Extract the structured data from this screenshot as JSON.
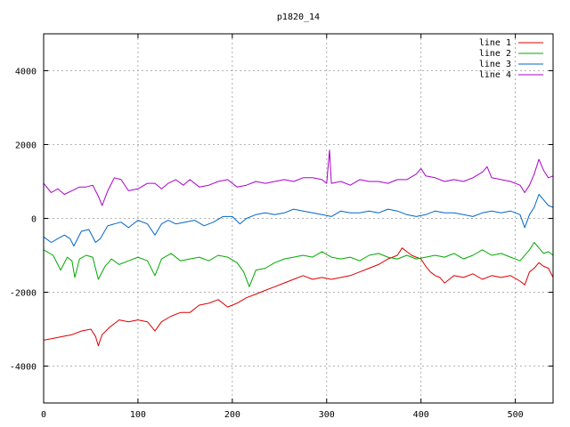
{
  "chart_data": {
    "type": "line",
    "title": "p1820_14",
    "xlim": [
      0,
      540
    ],
    "ylim": [
      -5000,
      5000
    ],
    "x_ticks": [
      0,
      100,
      200,
      300,
      400,
      500
    ],
    "y_ticks": [
      -4000,
      -2000,
      0,
      2000,
      4000
    ],
    "grid": true,
    "legend_position": "top-right",
    "series": [
      {
        "name": "line 1",
        "color": "#dd0000",
        "points": [
          [
            0,
            -3300
          ],
          [
            10,
            -3250
          ],
          [
            20,
            -3200
          ],
          [
            30,
            -3150
          ],
          [
            40,
            -3050
          ],
          [
            50,
            -3000
          ],
          [
            55,
            -3200
          ],
          [
            58,
            -3450
          ],
          [
            62,
            -3150
          ],
          [
            70,
            -2950
          ],
          [
            80,
            -2750
          ],
          [
            90,
            -2800
          ],
          [
            100,
            -2750
          ],
          [
            110,
            -2800
          ],
          [
            118,
            -3050
          ],
          [
            125,
            -2800
          ],
          [
            135,
            -2650
          ],
          [
            145,
            -2550
          ],
          [
            155,
            -2550
          ],
          [
            165,
            -2350
          ],
          [
            175,
            -2300
          ],
          [
            185,
            -2200
          ],
          [
            195,
            -2400
          ],
          [
            205,
            -2300
          ],
          [
            215,
            -2150
          ],
          [
            225,
            -2050
          ],
          [
            235,
            -1950
          ],
          [
            245,
            -1850
          ],
          [
            255,
            -1750
          ],
          [
            265,
            -1650
          ],
          [
            275,
            -1550
          ],
          [
            285,
            -1650
          ],
          [
            295,
            -1600
          ],
          [
            305,
            -1650
          ],
          [
            315,
            -1600
          ],
          [
            325,
            -1550
          ],
          [
            335,
            -1450
          ],
          [
            345,
            -1350
          ],
          [
            355,
            -1250
          ],
          [
            365,
            -1100
          ],
          [
            375,
            -1000
          ],
          [
            380,
            -800
          ],
          [
            385,
            -900
          ],
          [
            390,
            -1000
          ],
          [
            395,
            -1050
          ],
          [
            400,
            -1100
          ],
          [
            405,
            -1300
          ],
          [
            410,
            -1450
          ],
          [
            415,
            -1550
          ],
          [
            420,
            -1600
          ],
          [
            425,
            -1750
          ],
          [
            435,
            -1550
          ],
          [
            445,
            -1600
          ],
          [
            455,
            -1500
          ],
          [
            465,
            -1650
          ],
          [
            475,
            -1550
          ],
          [
            485,
            -1600
          ],
          [
            495,
            -1550
          ],
          [
            505,
            -1700
          ],
          [
            510,
            -1800
          ],
          [
            515,
            -1450
          ],
          [
            520,
            -1350
          ],
          [
            525,
            -1200
          ],
          [
            530,
            -1300
          ],
          [
            535,
            -1350
          ],
          [
            540,
            -1600
          ]
        ]
      },
      {
        "name": "line 2",
        "color": "#00aa00",
        "points": [
          [
            0,
            -850
          ],
          [
            10,
            -1000
          ],
          [
            18,
            -1400
          ],
          [
            25,
            -1050
          ],
          [
            30,
            -1150
          ],
          [
            33,
            -1600
          ],
          [
            38,
            -1100
          ],
          [
            45,
            -1000
          ],
          [
            52,
            -1050
          ],
          [
            58,
            -1650
          ],
          [
            65,
            -1300
          ],
          [
            72,
            -1100
          ],
          [
            80,
            -1250
          ],
          [
            90,
            -1150
          ],
          [
            100,
            -1050
          ],
          [
            110,
            -1150
          ],
          [
            118,
            -1550
          ],
          [
            125,
            -1100
          ],
          [
            135,
            -950
          ],
          [
            145,
            -1150
          ],
          [
            155,
            -1100
          ],
          [
            165,
            -1050
          ],
          [
            175,
            -1150
          ],
          [
            185,
            -1000
          ],
          [
            195,
            -1050
          ],
          [
            205,
            -1200
          ],
          [
            212,
            -1450
          ],
          [
            218,
            -1850
          ],
          [
            225,
            -1400
          ],
          [
            235,
            -1350
          ],
          [
            245,
            -1200
          ],
          [
            255,
            -1100
          ],
          [
            265,
            -1050
          ],
          [
            275,
            -1000
          ],
          [
            285,
            -1050
          ],
          [
            295,
            -900
          ],
          [
            305,
            -1050
          ],
          [
            315,
            -1100
          ],
          [
            325,
            -1050
          ],
          [
            335,
            -1150
          ],
          [
            345,
            -1000
          ],
          [
            355,
            -950
          ],
          [
            365,
            -1050
          ],
          [
            375,
            -1100
          ],
          [
            385,
            -1000
          ],
          [
            395,
            -1100
          ],
          [
            405,
            -1050
          ],
          [
            415,
            -1000
          ],
          [
            425,
            -1050
          ],
          [
            435,
            -950
          ],
          [
            445,
            -1100
          ],
          [
            455,
            -1000
          ],
          [
            465,
            -850
          ],
          [
            475,
            -1000
          ],
          [
            485,
            -950
          ],
          [
            495,
            -1050
          ],
          [
            505,
            -1150
          ],
          [
            515,
            -850
          ],
          [
            520,
            -650
          ],
          [
            525,
            -800
          ],
          [
            530,
            -950
          ],
          [
            535,
            -900
          ],
          [
            540,
            -1000
          ]
        ]
      },
      {
        "name": "line 3",
        "color": "#0066cc",
        "points": [
          [
            0,
            -500
          ],
          [
            8,
            -650
          ],
          [
            15,
            -550
          ],
          [
            22,
            -450
          ],
          [
            28,
            -550
          ],
          [
            32,
            -750
          ],
          [
            40,
            -350
          ],
          [
            48,
            -300
          ],
          [
            55,
            -650
          ],
          [
            60,
            -550
          ],
          [
            68,
            -200
          ],
          [
            75,
            -150
          ],
          [
            82,
            -100
          ],
          [
            90,
            -250
          ],
          [
            100,
            -50
          ],
          [
            110,
            -150
          ],
          [
            118,
            -450
          ],
          [
            125,
            -150
          ],
          [
            132,
            -50
          ],
          [
            140,
            -150
          ],
          [
            150,
            -100
          ],
          [
            160,
            -50
          ],
          [
            170,
            -200
          ],
          [
            180,
            -100
          ],
          [
            190,
            50
          ],
          [
            200,
            50
          ],
          [
            208,
            -150
          ],
          [
            215,
            0
          ],
          [
            225,
            100
          ],
          [
            235,
            150
          ],
          [
            245,
            100
          ],
          [
            255,
            150
          ],
          [
            265,
            250
          ],
          [
            275,
            200
          ],
          [
            285,
            150
          ],
          [
            295,
            100
          ],
          [
            305,
            50
          ],
          [
            315,
            200
          ],
          [
            325,
            150
          ],
          [
            335,
            150
          ],
          [
            345,
            200
          ],
          [
            355,
            150
          ],
          [
            365,
            250
          ],
          [
            375,
            200
          ],
          [
            385,
            100
          ],
          [
            395,
            50
          ],
          [
            405,
            100
          ],
          [
            415,
            200
          ],
          [
            425,
            150
          ],
          [
            435,
            150
          ],
          [
            445,
            100
          ],
          [
            455,
            50
          ],
          [
            465,
            150
          ],
          [
            475,
            200
          ],
          [
            485,
            150
          ],
          [
            495,
            200
          ],
          [
            505,
            100
          ],
          [
            510,
            -250
          ],
          [
            515,
            100
          ],
          [
            520,
            300
          ],
          [
            525,
            650
          ],
          [
            530,
            500
          ],
          [
            535,
            350
          ],
          [
            540,
            300
          ]
        ]
      },
      {
        "name": "line 4",
        "color": "#aa00cc",
        "points": [
          [
            0,
            950
          ],
          [
            8,
            700
          ],
          [
            15,
            800
          ],
          [
            22,
            650
          ],
          [
            30,
            750
          ],
          [
            38,
            850
          ],
          [
            45,
            850
          ],
          [
            52,
            900
          ],
          [
            58,
            600
          ],
          [
            62,
            350
          ],
          [
            68,
            750
          ],
          [
            75,
            1100
          ],
          [
            82,
            1050
          ],
          [
            90,
            750
          ],
          [
            100,
            800
          ],
          [
            110,
            950
          ],
          [
            118,
            950
          ],
          [
            125,
            800
          ],
          [
            132,
            950
          ],
          [
            140,
            1050
          ],
          [
            148,
            900
          ],
          [
            155,
            1050
          ],
          [
            165,
            850
          ],
          [
            175,
            900
          ],
          [
            185,
            1000
          ],
          [
            195,
            1050
          ],
          [
            205,
            850
          ],
          [
            215,
            900
          ],
          [
            225,
            1000
          ],
          [
            235,
            950
          ],
          [
            245,
            1000
          ],
          [
            255,
            1050
          ],
          [
            265,
            1000
          ],
          [
            275,
            1100
          ],
          [
            285,
            1100
          ],
          [
            295,
            1050
          ],
          [
            300,
            950
          ],
          [
            303,
            1850
          ],
          [
            305,
            950
          ],
          [
            315,
            1000
          ],
          [
            325,
            900
          ],
          [
            335,
            1050
          ],
          [
            345,
            1000
          ],
          [
            355,
            1000
          ],
          [
            365,
            950
          ],
          [
            375,
            1050
          ],
          [
            385,
            1050
          ],
          [
            395,
            1200
          ],
          [
            400,
            1350
          ],
          [
            405,
            1150
          ],
          [
            415,
            1100
          ],
          [
            425,
            1000
          ],
          [
            435,
            1050
          ],
          [
            445,
            1000
          ],
          [
            455,
            1100
          ],
          [
            465,
            1250
          ],
          [
            470,
            1400
          ],
          [
            475,
            1100
          ],
          [
            485,
            1050
          ],
          [
            495,
            1000
          ],
          [
            505,
            900
          ],
          [
            510,
            700
          ],
          [
            515,
            900
          ],
          [
            520,
            1200
          ],
          [
            525,
            1600
          ],
          [
            530,
            1300
          ],
          [
            535,
            1100
          ],
          [
            540,
            1150
          ]
        ]
      }
    ]
  }
}
